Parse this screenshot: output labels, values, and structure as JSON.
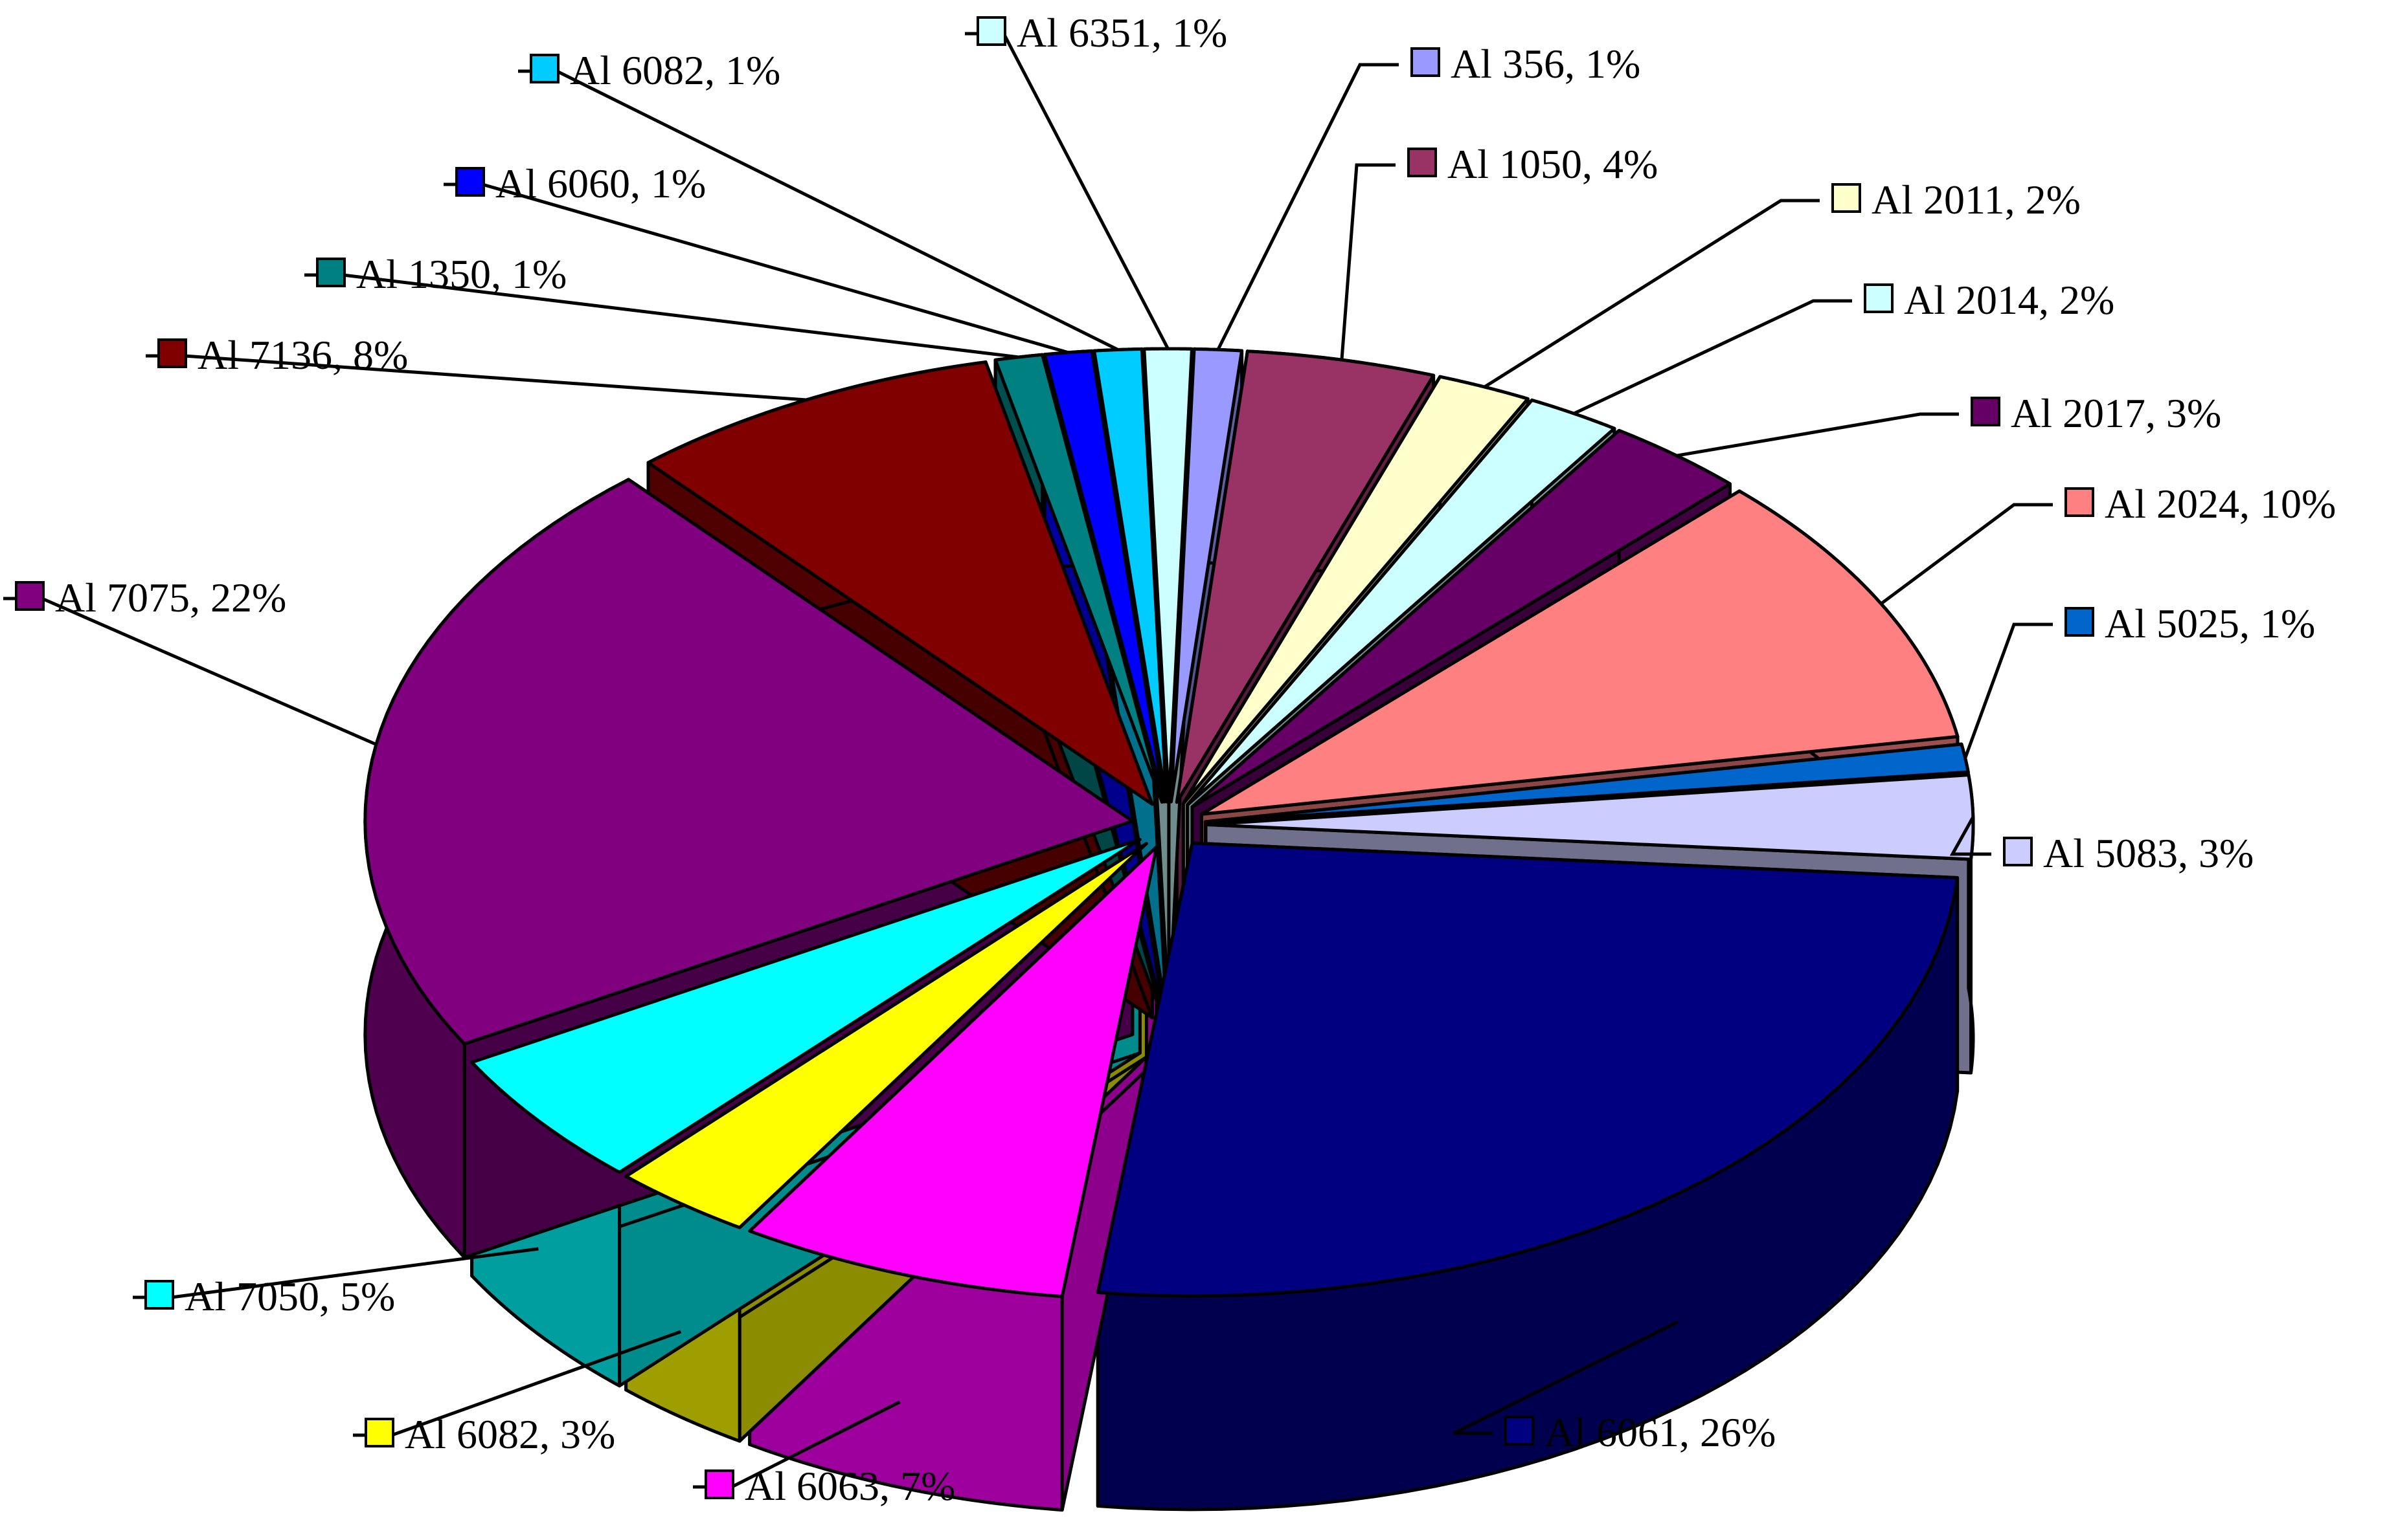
{
  "chart_data": {
    "type": "pie",
    "style": "3d-exploded",
    "title": "",
    "slices": [
      {
        "label": "Al 356, 1%",
        "name": "Al 356",
        "value": 1,
        "color": "#9999FF"
      },
      {
        "label": "Al 1050, 4%",
        "name": "Al 1050",
        "value": 4,
        "color": "#993366"
      },
      {
        "label": "Al 2011, 2%",
        "name": "Al 2011",
        "value": 2,
        "color": "#FFFFCC"
      },
      {
        "label": "Al 2014, 2%",
        "name": "Al 2014",
        "value": 2,
        "color": "#CCFFFF"
      },
      {
        "label": "Al 2017, 3%",
        "name": "Al 2017",
        "value": 3,
        "color": "#660066"
      },
      {
        "label": "Al 2024, 10%",
        "name": "Al 2024",
        "value": 10,
        "color": "#FF8080"
      },
      {
        "label": "Al 5025, 1%",
        "name": "Al 5025",
        "value": 1,
        "color": "#0066CC"
      },
      {
        "label": "Al 5083, 3%",
        "name": "Al 5083",
        "value": 3,
        "color": "#CCCCFF"
      },
      {
        "label": "Al 6061, 26%",
        "name": "Al 6061",
        "value": 26,
        "color": "#000080"
      },
      {
        "label": "Al 6063, 7%",
        "name": "Al 6063",
        "value": 7,
        "color": "#FF00FF"
      },
      {
        "label": "Al 6082, 3%",
        "name": "Al 6082",
        "value": 3,
        "color": "#FFFF00"
      },
      {
        "label": "Al 7050, 5%",
        "name": "Al 7050",
        "value": 5,
        "color": "#00FFFF"
      },
      {
        "label": "Al 7075, 22%",
        "name": "Al 7075",
        "value": 22,
        "color": "#800080"
      },
      {
        "label": "Al 7136, 8%",
        "name": "Al 7136",
        "value": 8,
        "color": "#800000"
      },
      {
        "label": "Al 1350, 1%",
        "name": "Al 1350",
        "value": 1,
        "color": "#008080"
      },
      {
        "label": "Al 6060, 1%",
        "name": "Al 6060",
        "value": 1,
        "color": "#0000FF"
      },
      {
        "label": "Al 6082, 1%",
        "name": "Al 6082",
        "value": 1,
        "color": "#00CCFF"
      },
      {
        "label": "Al 6351, 1%",
        "name": "Al 6351",
        "value": 1,
        "color": "#CCFFFF"
      }
    ],
    "legend": "none",
    "label_style": "outside-callouts"
  }
}
